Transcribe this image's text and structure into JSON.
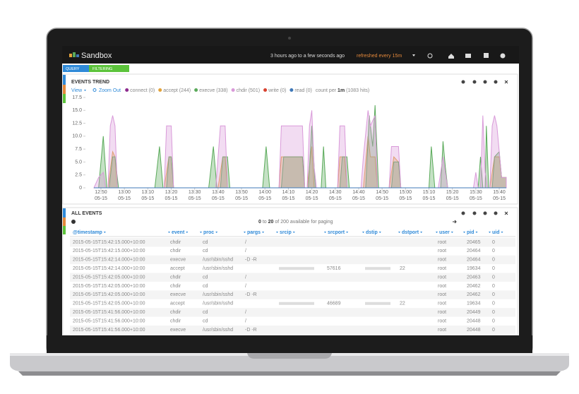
{
  "app": {
    "title": "Sandbox",
    "time_range": "3 hours ago to a few seconds ago",
    "refresh": "refreshed every 15m"
  },
  "tabs": [
    "QUERY",
    "FILTERING"
  ],
  "trend": {
    "title": "EVENTS TREND",
    "view": "View",
    "zoom_out": "Zoom Out",
    "count_per": "count per",
    "interval": "1m",
    "hits": "(1083 hits)",
    "chart": {
      "type": "area",
      "xlim": [
        767,
        943
      ],
      "ylim": [
        0,
        17.5
      ],
      "xticks": [
        {
          "value": 770,
          "label": "12:50"
        },
        {
          "value": 780,
          "label": "13:00"
        },
        {
          "value": 790,
          "label": "13:10"
        },
        {
          "value": 800,
          "label": "13:20"
        },
        {
          "value": 810,
          "label": "13:30"
        },
        {
          "value": 820,
          "label": "13:40"
        },
        {
          "value": 830,
          "label": "13:50"
        },
        {
          "value": 840,
          "label": "14:00"
        },
        {
          "value": 850,
          "label": "14:10"
        },
        {
          "value": 860,
          "label": "14:20"
        },
        {
          "value": 870,
          "label": "14:30"
        },
        {
          "value": 880,
          "label": "14:40"
        },
        {
          "value": 890,
          "label": "14:50"
        },
        {
          "value": 900,
          "label": "15:00"
        },
        {
          "value": 910,
          "label": "15:10"
        },
        {
          "value": 920,
          "label": "15:20"
        },
        {
          "value": 930,
          "label": "15:30"
        },
        {
          "value": 940,
          "label": "15:40"
        }
      ],
      "xtick_date": "05-15",
      "yticks": [
        0,
        2.5,
        {
          "value": 5,
          "label": "5.0"
        },
        7.5,
        {
          "value": 10,
          "label": "10.0"
        },
        12.5,
        {
          "value": 15,
          "label": "15.0"
        },
        17.5
      ],
      "series": [
        {
          "name": "connect (0)",
          "color": "#8e2c8e",
          "x": [
            767,
            943
          ],
          "values": [
            0,
            0
          ]
        },
        {
          "name": "accept (244)",
          "color": "#e3a33b",
          "x": [
            767,
            773,
            775,
            776,
            777,
            797,
            799,
            800,
            801,
            820,
            822,
            823,
            824,
            846,
            847,
            856,
            857,
            858,
            860,
            861,
            871,
            872,
            874,
            875,
            882,
            884,
            885,
            887,
            888,
            893,
            895,
            897,
            898,
            936,
            938,
            940,
            941,
            943
          ],
          "values": [
            0,
            0,
            7,
            6,
            0,
            0,
            6,
            6,
            0,
            0,
            6,
            6,
            0,
            0,
            6,
            6,
            0,
            0,
            8,
            0,
            0,
            6,
            6,
            0,
            0,
            10,
            6,
            6,
            0,
            0,
            6,
            5,
            0,
            0,
            6,
            6,
            2,
            2
          ]
        },
        {
          "name": "execve (338)",
          "color": "#5aaa5a",
          "x": [
            769,
            771,
            772.5,
            773.5,
            775,
            776,
            777.5,
            793,
            795,
            796.5,
            798,
            799,
            800,
            801,
            816,
            818,
            819.5,
            821,
            822,
            824,
            825,
            839,
            840.5,
            842,
            847,
            848,
            856,
            857,
            858.5,
            860,
            861.5,
            864,
            865,
            866,
            872,
            873,
            875,
            876,
            883,
            884.5,
            886,
            887,
            888.5,
            894,
            895,
            897,
            898,
            910,
            911,
            912.5,
            915,
            916,
            917,
            918,
            931,
            932,
            933,
            934,
            934.5,
            935.5,
            937,
            938,
            940,
            941,
            943
          ],
          "values": [
            0,
            10,
            0,
            0,
            6,
            6,
            0,
            0,
            8,
            0,
            0,
            6,
            6,
            0,
            0,
            8,
            0,
            0,
            6,
            6,
            0,
            0,
            8,
            0,
            0,
            6,
            6,
            0,
            0,
            12,
            0,
            0,
            8,
            0,
            0,
            6,
            6,
            0,
            0,
            14,
            8,
            16,
            0,
            0,
            5,
            5,
            0,
            0,
            8,
            0,
            0,
            9,
            4,
            0,
            0,
            6,
            0,
            0,
            12,
            0,
            0,
            6,
            7,
            2,
            2
          ]
        },
        {
          "name": "chdir (501)",
          "color": "#d99ad9",
          "x": [
            767,
            769,
            771,
            772,
            773,
            774,
            775,
            776,
            777,
            797,
            798,
            800,
            801,
            819,
            821,
            823,
            824,
            846,
            847,
            856,
            857,
            858,
            859,
            860,
            861,
            862,
            871,
            872,
            874,
            875,
            881,
            882,
            884,
            885,
            887,
            888,
            893,
            894,
            897,
            898,
            914,
            915,
            916,
            917,
            918,
            929,
            930,
            931,
            932,
            933,
            934,
            935,
            936,
            937,
            938,
            939,
            940,
            941,
            943
          ],
          "values": [
            0,
            2,
            3,
            0,
            0,
            12,
            14,
            12,
            0,
            0,
            12,
            12,
            0,
            0,
            12,
            12,
            0,
            0,
            12,
            12,
            0,
            0,
            12,
            15,
            4,
            0,
            0,
            12,
            12,
            0,
            0,
            6,
            15,
            12,
            14,
            0,
            0,
            8,
            8,
            0,
            0,
            3,
            6,
            3,
            0,
            0,
            3,
            0,
            0,
            14,
            3,
            0,
            0,
            12,
            14,
            12,
            7,
            2,
            2
          ]
        },
        {
          "name": "write (0)",
          "color": "#d8412f",
          "x": [
            767,
            943
          ],
          "values": [
            0,
            0
          ]
        },
        {
          "name": "read (0)",
          "color": "#3f78b8",
          "x": [
            767,
            943
          ],
          "values": [
            0,
            0
          ]
        }
      ]
    }
  },
  "events": {
    "title": "ALL EVENTS",
    "paging": {
      "from": "0",
      "to_word": "to",
      "to": "20",
      "rest": "of 200 available for paging"
    },
    "columns": [
      "@timestamp",
      "event",
      "proc",
      "pargs",
      "srcip",
      "srcport",
      "dstip",
      "dstport",
      "user",
      "pid",
      "uid"
    ],
    "rows": [
      [
        "2015-05-15T15:42:15.000+10:00",
        "chdir",
        "cd",
        "/",
        null,
        null,
        null,
        null,
        "root",
        "20465",
        "0"
      ],
      [
        "2015-05-15T15:42:15.000+10:00",
        "chdir",
        "cd",
        "/",
        null,
        null,
        null,
        null,
        "root",
        "20464",
        "0"
      ],
      [
        "2015-05-15T15:42:14.000+10:00",
        "execve",
        "/usr/sbin/sshd",
        "-D -R",
        null,
        null,
        null,
        null,
        "root",
        "20464",
        "0"
      ],
      [
        "2015-05-15T15:42:14.000+10:00",
        "accept",
        "/usr/sbin/sshd",
        null,
        null,
        "57616",
        null,
        "22",
        "root",
        "19634",
        "0"
      ],
      [
        "2015-05-15T15:42:05.000+10:00",
        "chdir",
        "cd",
        "/",
        null,
        null,
        null,
        null,
        "root",
        "20463",
        "0"
      ],
      [
        "2015-05-15T15:42:05.000+10:00",
        "chdir",
        "cd",
        "/",
        null,
        null,
        null,
        null,
        "root",
        "20462",
        "0"
      ],
      [
        "2015-05-15T15:42:05.000+10:00",
        "execve",
        "/usr/sbin/sshd",
        "-D -R",
        null,
        null,
        null,
        null,
        "root",
        "20462",
        "0"
      ],
      [
        "2015-05-15T15:42:05.000+10:00",
        "accept",
        "/usr/sbin/sshd",
        null,
        null,
        "46689",
        null,
        "22",
        "root",
        "19634",
        "0"
      ],
      [
        "2015-05-15T15:41:56.000+10:00",
        "chdir",
        "cd",
        "/",
        null,
        null,
        null,
        null,
        "root",
        "20449",
        "0"
      ],
      [
        "2015-05-15T15:41:56.000+10:00",
        "chdir",
        "cd",
        "/",
        null,
        null,
        null,
        null,
        "root",
        "20448",
        "0"
      ],
      [
        "2015-05-15T15:41:56.000+10:00",
        "execve",
        "/usr/sbin/sshd",
        "-D -R",
        null,
        null,
        null,
        null,
        "root",
        "20448",
        "0"
      ]
    ]
  }
}
